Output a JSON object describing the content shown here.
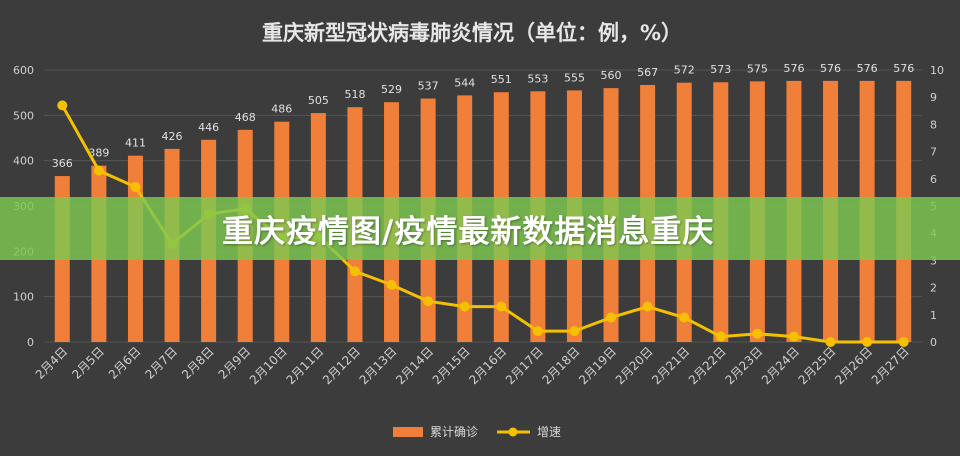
{
  "banner": {
    "text": "重庆疫情图/疫情最新数据消息重庆"
  },
  "chart_data": {
    "type": "bar",
    "title": "重庆新型冠状病毒肺炎情况（单位：例，%）",
    "categories": [
      "2月4日",
      "2月5日",
      "2月6日",
      "2月7日",
      "2月8日",
      "2月9日",
      "2月10日",
      "2月11日",
      "2月12日",
      "2月13日",
      "2月14日",
      "2月15日",
      "2月16日",
      "2月17日",
      "2月18日",
      "2月19日",
      "2月20日",
      "2月21日",
      "2月22日",
      "2月23日",
      "2月24日",
      "2月25日",
      "2月26日",
      "2月27日"
    ],
    "series": [
      {
        "name": "累计确诊",
        "type": "bar",
        "axis": "left",
        "color": "#f07f3a",
        "values": [
          366,
          389,
          411,
          426,
          446,
          468,
          486,
          505,
          518,
          529,
          537,
          544,
          551,
          553,
          555,
          560,
          567,
          572,
          573,
          575,
          576,
          576,
          576,
          576
        ]
      },
      {
        "name": "增速",
        "type": "line",
        "axis": "right",
        "color": "#f5c000",
        "values": [
          8.7,
          6.3,
          5.7,
          3.6,
          4.7,
          4.9,
          3.8,
          3.9,
          2.6,
          2.1,
          1.5,
          1.3,
          1.3,
          0.4,
          0.4,
          0.9,
          1.3,
          0.9,
          0.2,
          0.3,
          0.2,
          0.0,
          0.0,
          0.0
        ]
      }
    ],
    "ylim_left": [
      0,
      600
    ],
    "yticks_left": [
      0,
      100,
      200,
      300,
      400,
      500,
      600
    ],
    "ylim_right": [
      0,
      10
    ],
    "yticks_right": [
      0,
      1,
      2,
      3,
      4,
      5,
      6,
      7,
      8,
      9,
      10
    ],
    "grid": true,
    "legend": "bottom"
  }
}
